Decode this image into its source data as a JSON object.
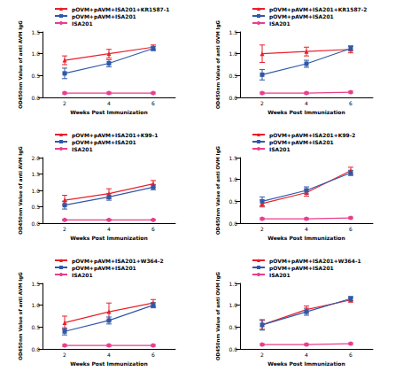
{
  "chart_data": [
    {
      "type": "line",
      "x_label": "Weeks Post Immunization",
      "y_label": "OD450nm Value of anti AVM IgG",
      "legend": "upper left",
      "categories": [
        "2",
        "4",
        "6"
      ],
      "ylim": [
        0,
        1.5
      ],
      "yticks": [
        {
          "value": 0,
          "label": "0.0"
        },
        0.5,
        {
          "value": 1,
          "label": "1.0"
        },
        1.5
      ],
      "series": [
        {
          "name": "pOVM+pAVM+ISA201+KR1587-1",
          "color": "#e8202a",
          "marker": "triangle",
          "values": [
            0.85,
            1.0,
            1.15
          ],
          "errors": [
            0.1,
            0.1,
            0.05
          ]
        },
        {
          "name": "pOVM+pAVM+ISA201",
          "color": "#2f58a8",
          "marker": "square",
          "values": [
            0.55,
            0.78,
            1.12
          ],
          "errors": [
            0.12,
            0.08,
            0.05
          ]
        },
        {
          "name": "ISA201",
          "color": "#e83e8c",
          "marker": "circle",
          "values": [
            0.1,
            0.1,
            0.1
          ],
          "errors": [
            0.02,
            0.02,
            0.02
          ]
        }
      ]
    },
    {
      "type": "line",
      "x_label": "Weeks Post Immunization",
      "y_label": "OD450nm Value of anti OVM IgG",
      "legend": "upper left",
      "categories": [
        "2",
        "4",
        "6"
      ],
      "ylim": [
        0,
        1.5
      ],
      "yticks": [
        {
          "value": 0,
          "label": "0.0"
        },
        0.5,
        {
          "value": 1,
          "label": "1.0"
        },
        1.5
      ],
      "series": [
        {
          "name": "pOVM+pAVM+ISA201+KR1587-2",
          "color": "#e8202a",
          "marker": "triangle",
          "values": [
            1.0,
            1.05,
            1.1
          ],
          "errors": [
            0.2,
            0.1,
            0.08
          ]
        },
        {
          "name": "pOVM+pAVM+ISA201",
          "color": "#2f58a8",
          "marker": "square",
          "values": [
            0.52,
            0.77,
            1.12
          ],
          "errors": [
            0.12,
            0.08,
            0.05
          ]
        },
        {
          "name": "ISA201",
          "color": "#e83e8c",
          "marker": "circle",
          "values": [
            0.1,
            0.1,
            0.12
          ],
          "errors": [
            0.02,
            0.02,
            0.02
          ]
        }
      ]
    },
    {
      "type": "line",
      "x_label": "Weeks Post Immunization",
      "y_label": "OD450nm Value of anti AVM IgG",
      "legend": "upper left",
      "categories": [
        "2",
        "4",
        "6"
      ],
      "ylim": [
        0,
        2
      ],
      "yticks": [
        {
          "value": 0,
          "label": "0.0"
        },
        0.5,
        {
          "value": 1,
          "label": "1.0"
        },
        1.5,
        {
          "value": 2,
          "label": "2.0"
        }
      ],
      "series": [
        {
          "name": "pOVM+pAVM+ISA201+K99-1",
          "color": "#e8202a",
          "marker": "triangle",
          "values": [
            0.7,
            0.9,
            1.2
          ],
          "errors": [
            0.15,
            0.15,
            0.1
          ]
        },
        {
          "name": "pOVM+pAVM+ISA201",
          "color": "#2f58a8",
          "marker": "square",
          "values": [
            0.55,
            0.8,
            1.1
          ],
          "errors": [
            0.12,
            0.1,
            0.08
          ]
        },
        {
          "name": "ISA201",
          "color": "#e83e8c",
          "marker": "circle",
          "values": [
            0.1,
            0.1,
            0.1
          ],
          "errors": [
            0.02,
            0.02,
            0.02
          ]
        }
      ]
    },
    {
      "type": "line",
      "x_label": "Weeks Post Immunization",
      "y_label": "OD450nm Value of anti OVM IgG",
      "legend": "upper left",
      "categories": [
        "2",
        "4",
        "6"
      ],
      "ylim": [
        0,
        1.5
      ],
      "yticks": [
        {
          "value": 0,
          "label": "0.0"
        },
        0.5,
        {
          "value": 1,
          "label": "1.0"
        },
        1.5
      ],
      "series": [
        {
          "name": "pOVM+pAVM+ISA201+K99-2",
          "color": "#e8202a",
          "marker": "triangle",
          "values": [
            0.45,
            0.7,
            1.2
          ],
          "errors": [
            0.08,
            0.08,
            0.08
          ]
        },
        {
          "name": "pOVM+pAVM+ISA201",
          "color": "#2f58a8",
          "marker": "square",
          "values": [
            0.5,
            0.75,
            1.15
          ],
          "errors": [
            0.1,
            0.08,
            0.06
          ]
        },
        {
          "name": "ISA201",
          "color": "#e83e8c",
          "marker": "circle",
          "values": [
            0.1,
            0.1,
            0.12
          ],
          "errors": [
            0.02,
            0.02,
            0.02
          ]
        }
      ]
    },
    {
      "type": "line",
      "x_label": "Weeks Post Immunization",
      "y_label": "OD450nm Value of anti AVM IgG",
      "legend": "upper left",
      "categories": [
        "2",
        "4",
        "6"
      ],
      "ylim": [
        0,
        1.5
      ],
      "yticks": [
        {
          "value": 0,
          "label": "0.0"
        },
        0.5,
        {
          "value": 1,
          "label": "1.0"
        },
        1.5
      ],
      "series": [
        {
          "name": "pOVM+pAVM+ISA201+W364-2",
          "color": "#e8202a",
          "marker": "triangle",
          "values": [
            0.6,
            0.85,
            1.05
          ],
          "errors": [
            0.15,
            0.2,
            0.08
          ]
        },
        {
          "name": "pOVM+pAVM+ISA201",
          "color": "#2f58a8",
          "marker": "square",
          "values": [
            0.4,
            0.65,
            1.0
          ],
          "errors": [
            0.08,
            0.08,
            0.06
          ]
        },
        {
          "name": "ISA201",
          "color": "#e83e8c",
          "marker": "circle",
          "values": [
            0.08,
            0.08,
            0.08
          ],
          "errors": [
            0.02,
            0.02,
            0.02
          ]
        }
      ]
    },
    {
      "type": "line",
      "x_label": "Weeks Post Immunization",
      "y_label": "OD450nm Value of anti OVM IgG",
      "legend": "upper left",
      "categories": [
        "2",
        "4",
        "6"
      ],
      "ylim": [
        0,
        1.5
      ],
      "yticks": [
        {
          "value": 0,
          "label": "0.0"
        },
        0.5,
        {
          "value": 1,
          "label": "1.0"
        },
        1.5
      ],
      "series": [
        {
          "name": "pOVM+pAVM+ISA201+W364-1",
          "color": "#e8202a",
          "marker": "triangle",
          "values": [
            0.55,
            0.9,
            1.12
          ],
          "errors": [
            0.1,
            0.08,
            0.05
          ]
        },
        {
          "name": "pOVM+pAVM+ISA201",
          "color": "#2f58a8",
          "marker": "square",
          "values": [
            0.55,
            0.85,
            1.15
          ],
          "errors": [
            0.12,
            0.08,
            0.05
          ]
        },
        {
          "name": "ISA201",
          "color": "#e83e8c",
          "marker": "circle",
          "values": [
            0.1,
            0.1,
            0.12
          ],
          "errors": [
            0.02,
            0.02,
            0.02
          ]
        }
      ]
    }
  ]
}
